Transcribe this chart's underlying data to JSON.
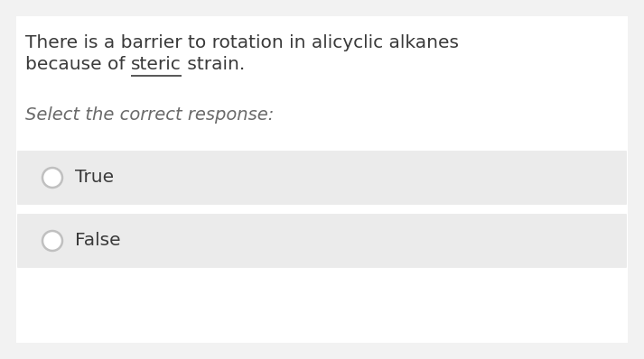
{
  "bg_color": "#f2f2f2",
  "panel_bg": "#ffffff",
  "option_bg": "#ebebeb",
  "q_line1": "There is a barrier to rotation in alicyclic alkanes",
  "q_line2_pre": "because of ",
  "q_line2_under": "steric",
  "q_line2_post": " strain.",
  "select_text": "Select the correct response:",
  "options": [
    "True",
    "False"
  ],
  "text_color": "#3a3a3a",
  "select_color": "#6a6a6a",
  "option_text_color": "#3a3a3a",
  "question_fontsize": 14.5,
  "select_fontsize": 14.0,
  "option_fontsize": 14.5,
  "circle_edge_color": "#c0c0c0",
  "circle_face_color": "#ffffff"
}
